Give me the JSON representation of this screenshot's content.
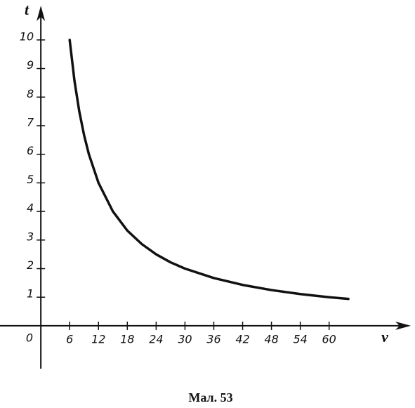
{
  "chart_data": {
    "type": "line",
    "x_label": "v",
    "y_label": "t",
    "origin_label": "0",
    "caption": "Мал. 53",
    "x": [
      6,
      7,
      8,
      9,
      10,
      12,
      15,
      18,
      21,
      24,
      27,
      30,
      36,
      42,
      48,
      54,
      60,
      64
    ],
    "series": [
      {
        "color": "#111111",
        "values": [
          10,
          8.57,
          7.5,
          6.67,
          6,
          5,
          4,
          3.33,
          2.86,
          2.5,
          2.22,
          2,
          1.67,
          1.43,
          1.25,
          1.11,
          1,
          0.94
        ]
      }
    ],
    "xlim": [
      -8.5,
      77
    ],
    "ylim": [
      -1.5,
      11.2
    ],
    "xticks": [
      6,
      12,
      18,
      24,
      30,
      36,
      42,
      48,
      54,
      60
    ],
    "yticks": [
      1,
      2,
      3,
      4,
      5,
      6,
      7,
      8,
      9,
      10
    ],
    "grid": false
  }
}
